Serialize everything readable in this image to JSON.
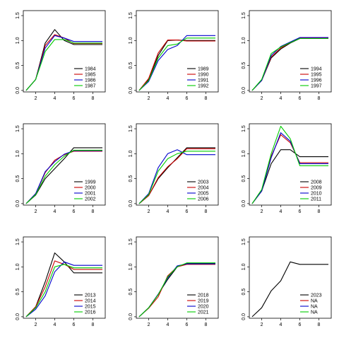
{
  "chart_data": {
    "type": "line",
    "x": [
      1,
      2,
      3,
      4,
      5,
      6,
      7,
      8,
      9
    ],
    "xticks": [
      2,
      4,
      6,
      8
    ],
    "yticks": [
      "0.0",
      "0.5",
      "1.0",
      "1.5"
    ],
    "xlim": [
      0.7,
      9.3
    ],
    "ylim": [
      -0.03,
      1.6
    ],
    "grid": false,
    "legend_position": "bottom-right",
    "colors": [
      "#000000",
      "#cc0000",
      "#0000cc",
      "#00cc00"
    ],
    "panels": [
      {
        "series": [
          {
            "name": "1984",
            "values": [
              0.0,
              0.22,
              0.95,
              1.22,
              1.0,
              0.92,
              0.92,
              0.92,
              0.92
            ]
          },
          {
            "name": "1985",
            "values": [
              0.0,
              0.22,
              0.9,
              1.12,
              1.05,
              0.94,
              0.94,
              0.94,
              0.94
            ]
          },
          {
            "name": "1986",
            "values": [
              0.0,
              0.22,
              0.85,
              1.1,
              1.05,
              0.98,
              0.98,
              0.98,
              0.98
            ]
          },
          {
            "name": "1987",
            "values": [
              0.0,
              0.22,
              0.78,
              1.02,
              1.02,
              0.95,
              0.95,
              0.95,
              0.95
            ]
          }
        ]
      },
      {
        "series": [
          {
            "name": "1989",
            "values": [
              0.0,
              0.22,
              0.7,
              1.0,
              1.01,
              1.0,
              1.0,
              1.0,
              1.0
            ]
          },
          {
            "name": "1990",
            "values": [
              0.0,
              0.24,
              0.75,
              1.01,
              1.01,
              0.99,
              0.99,
              0.99,
              0.99
            ]
          },
          {
            "name": "1991",
            "values": [
              0.0,
              0.18,
              0.6,
              0.82,
              0.9,
              1.1,
              1.1,
              1.1,
              1.1
            ]
          },
          {
            "name": "1992",
            "values": [
              0.0,
              0.2,
              0.65,
              0.9,
              0.93,
              1.05,
              1.05,
              1.05,
              1.05
            ]
          }
        ]
      },
      {
        "series": [
          {
            "name": "1994",
            "values": [
              0.0,
              0.2,
              0.65,
              0.83,
              0.95,
              1.04,
              1.04,
              1.04,
              1.04
            ]
          },
          {
            "name": "1995",
            "values": [
              0.0,
              0.2,
              0.67,
              0.85,
              0.96,
              1.05,
              1.05,
              1.05,
              1.05
            ]
          },
          {
            "name": "1996",
            "values": [
              0.0,
              0.2,
              0.7,
              0.88,
              0.97,
              1.06,
              1.06,
              1.06,
              1.06
            ]
          },
          {
            "name": "1997",
            "values": [
              0.0,
              0.22,
              0.74,
              0.87,
              0.96,
              1.04,
              1.04,
              1.04,
              1.04
            ]
          }
        ]
      },
      {
        "series": [
          {
            "name": "1999",
            "values": [
              0.0,
              0.17,
              0.5,
              0.7,
              0.9,
              1.12,
              1.12,
              1.12,
              1.12
            ]
          },
          {
            "name": "2000",
            "values": [
              0.0,
              0.2,
              0.62,
              0.87,
              0.98,
              1.05,
              1.05,
              1.05,
              1.05
            ]
          },
          {
            "name": "2001",
            "values": [
              0.0,
              0.2,
              0.64,
              0.84,
              0.99,
              1.06,
              1.06,
              1.06,
              1.06
            ]
          },
          {
            "name": "2002",
            "values": [
              0.0,
              0.18,
              0.55,
              0.78,
              0.95,
              1.07,
              1.07,
              1.07,
              1.07
            ]
          }
        ]
      },
      {
        "series": [
          {
            "name": "2003",
            "values": [
              0.0,
              0.16,
              0.5,
              0.72,
              0.92,
              1.12,
              1.12,
              1.12,
              1.12
            ]
          },
          {
            "name": "2004",
            "values": [
              0.0,
              0.16,
              0.52,
              0.74,
              0.9,
              1.1,
              1.1,
              1.1,
              1.1
            ]
          },
          {
            "name": "2005",
            "values": [
              0.0,
              0.2,
              0.72,
              1.0,
              1.08,
              0.98,
              0.98,
              0.98,
              0.98
            ]
          },
          {
            "name": "2006",
            "values": [
              0.0,
              0.18,
              0.65,
              0.9,
              1.0,
              1.05,
              1.05,
              1.05,
              1.05
            ]
          }
        ]
      },
      {
        "series": [
          {
            "name": "2008",
            "values": [
              0.0,
              0.25,
              0.8,
              1.08,
              1.08,
              0.94,
              0.94,
              0.94,
              0.94
            ]
          },
          {
            "name": "2009",
            "values": [
              0.0,
              0.25,
              0.95,
              1.38,
              1.22,
              0.82,
              0.82,
              0.82,
              0.82
            ]
          },
          {
            "name": "2010",
            "values": [
              0.0,
              0.25,
              0.92,
              1.42,
              1.25,
              0.8,
              0.8,
              0.8,
              0.8
            ]
          },
          {
            "name": "2011",
            "values": [
              0.0,
              0.28,
              1.0,
              1.55,
              1.3,
              0.76,
              0.76,
              0.76,
              0.76
            ]
          }
        ]
      },
      {
        "series": [
          {
            "name": "2013",
            "values": [
              0.0,
              0.2,
              0.7,
              1.28,
              1.1,
              0.88,
              0.88,
              0.88,
              0.88
            ]
          },
          {
            "name": "2014",
            "values": [
              0.0,
              0.2,
              0.6,
              1.12,
              1.05,
              0.95,
              0.95,
              0.95,
              0.95
            ]
          },
          {
            "name": "2015",
            "values": [
              0.0,
              0.15,
              0.42,
              0.9,
              1.1,
              1.03,
              1.03,
              1.03,
              1.03
            ]
          },
          {
            "name": "2016",
            "values": [
              0.0,
              0.18,
              0.5,
              1.0,
              1.05,
              0.98,
              0.98,
              0.98,
              0.98
            ]
          }
        ]
      },
      {
        "series": [
          {
            "name": "2018",
            "values": [
              0.0,
              0.18,
              0.45,
              0.75,
              1.0,
              1.07,
              1.07,
              1.07,
              1.07
            ]
          },
          {
            "name": "2019",
            "values": [
              0.0,
              0.17,
              0.4,
              0.82,
              1.0,
              1.05,
              1.05,
              1.05,
              1.05
            ]
          },
          {
            "name": "2020",
            "values": [
              0.0,
              0.18,
              0.45,
              0.78,
              1.02,
              1.06,
              1.06,
              1.06,
              1.06
            ]
          },
          {
            "name": "2021",
            "values": [
              0.0,
              0.18,
              0.44,
              0.8,
              1.0,
              1.08,
              1.08,
              1.08,
              1.08
            ]
          }
        ]
      },
      {
        "series": [
          {
            "name": "2023",
            "values": [
              0.0,
              0.18,
              0.52,
              0.72,
              1.1,
              1.05,
              1.05,
              1.05,
              1.05
            ]
          },
          {
            "name": "NA",
            "values": []
          },
          {
            "name": "NA",
            "values": []
          },
          {
            "name": "NA",
            "values": []
          }
        ]
      }
    ]
  }
}
